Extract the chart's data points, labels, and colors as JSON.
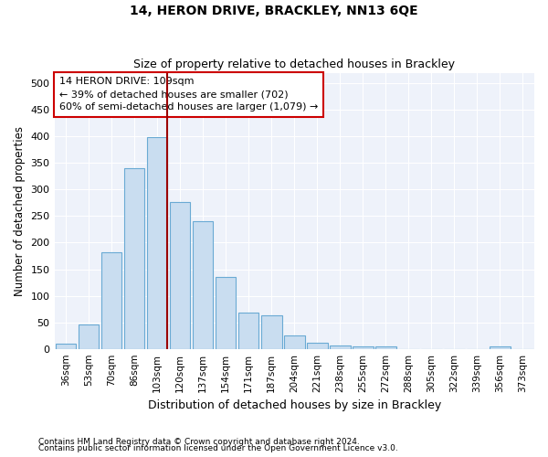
{
  "title1": "14, HERON DRIVE, BRACKLEY, NN13 6QE",
  "title2": "Size of property relative to detached houses in Brackley",
  "xlabel": "Distribution of detached houses by size in Brackley",
  "ylabel": "Number of detached properties",
  "categories": [
    "36sqm",
    "53sqm",
    "70sqm",
    "86sqm",
    "103sqm",
    "120sqm",
    "137sqm",
    "154sqm",
    "171sqm",
    "187sqm",
    "204sqm",
    "221sqm",
    "238sqm",
    "255sqm",
    "272sqm",
    "288sqm",
    "305sqm",
    "322sqm",
    "339sqm",
    "356sqm",
    "373sqm"
  ],
  "values": [
    10,
    46,
    182,
    340,
    399,
    277,
    240,
    135,
    69,
    63,
    25,
    12,
    6,
    4,
    4,
    0,
    0,
    0,
    0,
    5,
    0
  ],
  "bar_color": "#c9ddf0",
  "bar_edge_color": "#6aaad4",
  "vline_color": "#9b0000",
  "annotation_text1": "14 HERON DRIVE: 109sqm",
  "annotation_text2": "← 39% of detached houses are smaller (702)",
  "annotation_text3": "60% of semi-detached houses are larger (1,079) →",
  "annotation_box_color": "#ffffff",
  "annotation_box_edge": "#cc0000",
  "footnote1": "Contains HM Land Registry data © Crown copyright and database right 2024.",
  "footnote2": "Contains public sector information licensed under the Open Government Licence v3.0.",
  "ylim": [
    0,
    520
  ],
  "yticks": [
    0,
    50,
    100,
    150,
    200,
    250,
    300,
    350,
    400,
    450,
    500
  ],
  "figsize": [
    6.0,
    5.0
  ],
  "dpi": 100,
  "bg_color": "#eef2fa"
}
